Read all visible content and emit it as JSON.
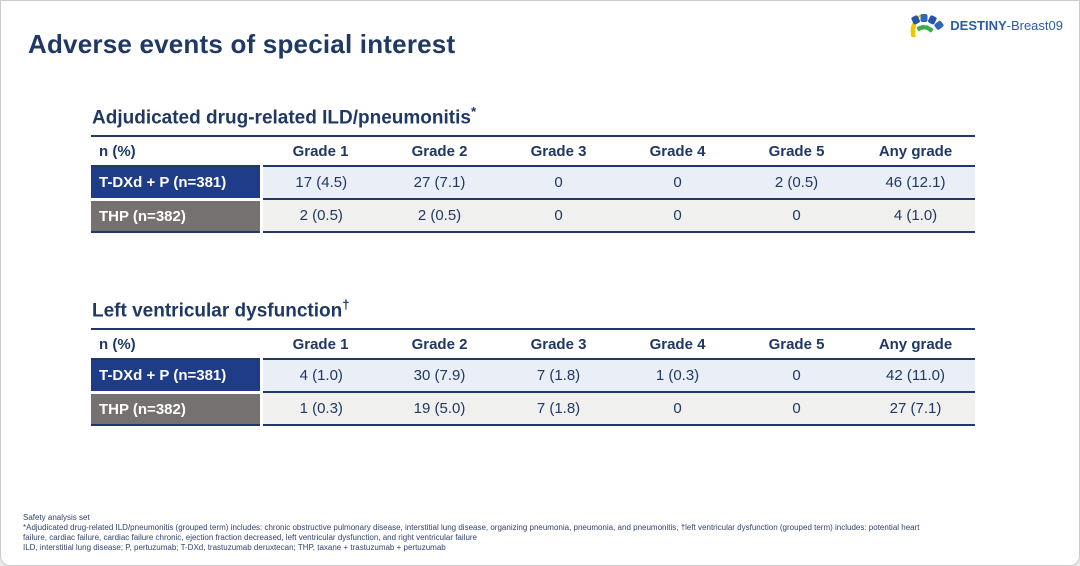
{
  "slide": {
    "title": "Adverse events of special interest",
    "logo": {
      "bold": "DESTINY",
      "regular": "-Breast09"
    }
  },
  "tables": [
    {
      "title": "Adjudicated drug-related ILD/pneumonitis",
      "marker": "*",
      "columns": [
        "n (%)",
        "Grade 1",
        "Grade 2",
        "Grade 3",
        "Grade 4",
        "Grade 5",
        "Any grade"
      ],
      "rows": [
        {
          "label": "T-DXd + P (n=381)",
          "values": [
            "17 (4.5)",
            "27 (7.1)",
            "0",
            "0",
            "2 (0.5)",
            "46 (12.1)"
          ]
        },
        {
          "label": "THP (n=382)",
          "values": [
            "2 (0.5)",
            "2 (0.5)",
            "0",
            "0",
            "0",
            "4 (1.0)"
          ]
        }
      ]
    },
    {
      "title": "Left ventricular dysfunction",
      "marker": "†",
      "columns": [
        "n (%)",
        "Grade 1",
        "Grade 2",
        "Grade 3",
        "Grade 4",
        "Grade 5",
        "Any grade"
      ],
      "rows": [
        {
          "label": "T-DXd + P (n=381)",
          "values": [
            "4 (1.0)",
            "30 (7.9)",
            "7 (1.8)",
            "1 (0.3)",
            "0",
            "42 (11.0)"
          ]
        },
        {
          "label": "THP (n=382)",
          "values": [
            "1 (0.3)",
            "19 (5.0)",
            "7 (1.8)",
            "0",
            "0",
            "27 (7.1)"
          ]
        }
      ]
    }
  ],
  "footnotes": {
    "lines": [
      "Safety analysis set",
      "*Adjudicated drug-related ILD/pneumonitis (grouped term) includes: chronic obstructive pulmonary disease, interstitial lung disease, organizing pneumonia, pneumonia, and pneumonitis, †left ventricular dysfunction (grouped term) includes: potential heart",
      "failure, cardiac failure, cardiac failure chronic, ejection fraction decreased, left ventricular dysfunction, and right ventricular failure",
      "ILD, interstitial lung disease; P, pertuzumab; T-DXd, trastuzumab deruxtecan; THP, taxane + trastuzumab + pertuzumab"
    ]
  },
  "colors": {
    "navy_text": "#1f3864",
    "row_header_blue": "#1e3c87",
    "row_header_gray": "#767171",
    "row_bg_blue": "#e9eef7",
    "row_bg_gray": "#f0f0ee",
    "logo_text_blue": "#2b5ca8",
    "logo_yellow": "#f4c400",
    "logo_blue": "#2e66b8",
    "logo_green": "#3cae4a"
  }
}
